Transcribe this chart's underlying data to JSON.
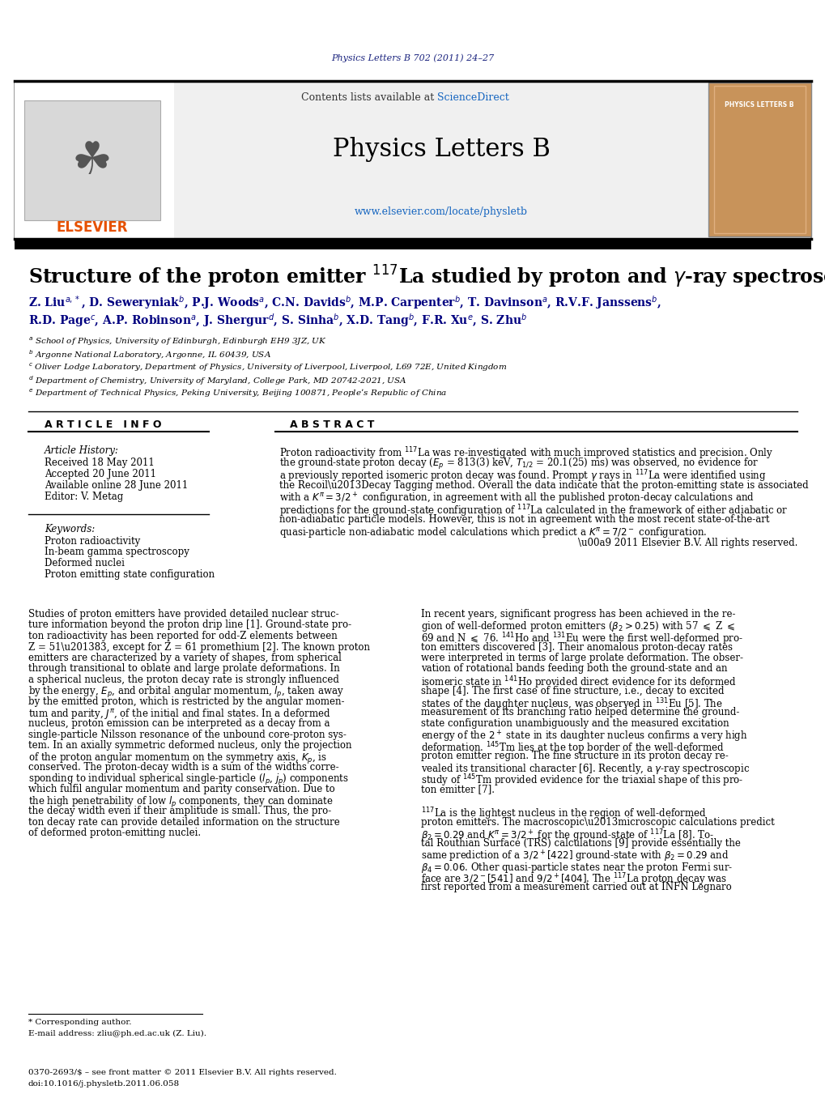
{
  "bg_color": "#ffffff",
  "top_journal_text": "Physics Letters B 702 (2011) 24–27",
  "top_journal_color": "#1a237e",
  "header_bg": "#f0f0f0",
  "contents_text": "Contents lists available at",
  "sciencedirect_text": "ScienceDirect",
  "sciencedirect_color": "#1565c0",
  "journal_title": "Physics Letters B",
  "journal_url": "www.elsevier.com/locate/physletb",
  "journal_url_color": "#1565c0",
  "elsevier_color": "#e65100",
  "article_info_header": "A R T I C L E   I N F O",
  "abstract_header": "A B S T R A C T",
  "article_history_label": "Article History:",
  "received": "Received 18 May 2011",
  "accepted": "Accepted 20 June 2011",
  "available": "Available online 28 June 2011",
  "editor": "Editor: V. Metag",
  "keywords_label": "Keywords:",
  "keywords": [
    "Proton radioactivity",
    "In-beam gamma spectroscopy",
    "Deformed nuclei",
    "Proton emitting state configuration"
  ],
  "affiliations": [
    "$^{a}$ School of Physics, University of Edinburgh, Edinburgh EH9 3JZ, UK",
    "$^{b}$ Argonne National Laboratory, Argonne, IL 60439, USA",
    "$^{c}$ Oliver Lodge Laboratory, Department of Physics, University of Liverpool, Liverpool, L69 72E, United Kingdom",
    "$^{d}$ Department of Chemistry, University of Maryland, College Park, MD 20742-2021, USA",
    "$^{e}$ Department of Technical Physics, Peking University, Beijing 100871, People’s Republic of China"
  ],
  "footer_line1": "0370-2693/$ – see front matter © 2011 Elsevier B.V. All rights reserved.",
  "footer_line2": "doi:10.1016/j.physletb.2011.06.058",
  "footnote_line1": "* Corresponding author.",
  "footnote_line2": "E-mail address: zliu@ph.ed.ac.uk (Z. Liu)."
}
